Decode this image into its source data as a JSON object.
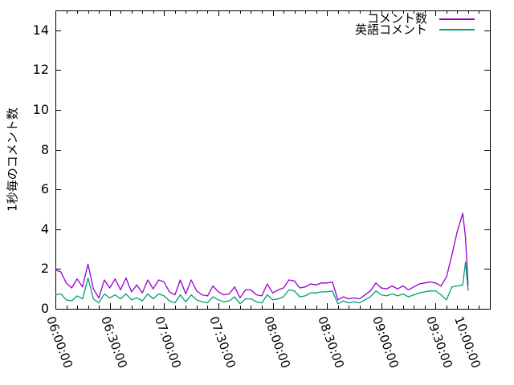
{
  "chart_data": {
    "type": "line",
    "title": "",
    "ylabel": "1秒毎のコメント数",
    "xlabel": "",
    "grid": false,
    "legend_position": "top-right-inside",
    "background_color": "#ffffff",
    "axis_color": "#000000",
    "text_color": "#000000",
    "x_axis": {
      "range_minutes": [
        0,
        240
      ],
      "tick_labels": [
        "06:00:00",
        "06:30:00",
        "07:00:00",
        "07:30:00",
        "08:00:00",
        "08:30:00",
        "09:00:00",
        "09:30:00",
        "10:00:00"
      ],
      "tick_minutes": [
        0,
        30,
        60,
        90,
        120,
        150,
        180,
        210,
        240
      ],
      "minor_tick_interval_minutes": 6
    },
    "y_axis": {
      "range": [
        0,
        15
      ],
      "tick_labels": [
        "0",
        "2",
        "4",
        "6",
        "8",
        "10",
        "12",
        "14"
      ],
      "tick_values": [
        0,
        2,
        4,
        6,
        8,
        10,
        12,
        14
      ]
    },
    "x_minutes": [
      0,
      3,
      6,
      9,
      12,
      15,
      18,
      21,
      24,
      27,
      30,
      33,
      36,
      39,
      42,
      45,
      48,
      51,
      54,
      57,
      60,
      63,
      66,
      69,
      72,
      75,
      78,
      81,
      84,
      87,
      90,
      93,
      96,
      99,
      102,
      105,
      108,
      111,
      114,
      117,
      120,
      123,
      126,
      129,
      132,
      135,
      138,
      141,
      144,
      147,
      150,
      153,
      156,
      159,
      162,
      165,
      168,
      171,
      174,
      177,
      180,
      183,
      186,
      189,
      192,
      195,
      198,
      201,
      204,
      207,
      210,
      213,
      216,
      219,
      222,
      225,
      226.5,
      228
    ],
    "series": [
      {
        "name": "コメント数",
        "color": "#9400d3",
        "values": [
          1.95,
          1.85,
          1.3,
          1.05,
          1.5,
          1.1,
          2.25,
          1.0,
          0.55,
          1.45,
          1.05,
          1.5,
          0.95,
          1.55,
          0.85,
          1.2,
          0.8,
          1.45,
          1.0,
          1.45,
          1.35,
          0.85,
          0.7,
          1.45,
          0.75,
          1.45,
          0.9,
          0.7,
          0.65,
          1.15,
          0.85,
          0.7,
          0.75,
          1.1,
          0.55,
          0.95,
          0.95,
          0.7,
          0.65,
          1.25,
          0.8,
          0.95,
          1.05,
          1.45,
          1.4,
          1.05,
          1.1,
          1.25,
          1.2,
          1.3,
          1.3,
          1.35,
          0.45,
          0.6,
          0.5,
          0.55,
          0.5,
          0.7,
          0.9,
          1.3,
          1.05,
          1.0,
          1.15,
          1.0,
          1.15,
          0.95,
          1.1,
          1.25,
          1.3,
          1.35,
          1.3,
          1.15,
          1.6,
          2.7,
          3.9,
          4.8,
          3.6,
          1.15
        ]
      },
      {
        "name": "英語コメント",
        "color": "#009e73",
        "values": [
          0.7,
          0.75,
          0.45,
          0.4,
          0.65,
          0.5,
          1.55,
          0.5,
          0.3,
          0.75,
          0.55,
          0.7,
          0.5,
          0.75,
          0.45,
          0.55,
          0.4,
          0.75,
          0.5,
          0.75,
          0.65,
          0.4,
          0.3,
          0.7,
          0.35,
          0.7,
          0.45,
          0.35,
          0.3,
          0.6,
          0.45,
          0.35,
          0.4,
          0.6,
          0.25,
          0.5,
          0.5,
          0.35,
          0.3,
          0.7,
          0.45,
          0.5,
          0.6,
          0.95,
          0.9,
          0.6,
          0.65,
          0.8,
          0.8,
          0.85,
          0.85,
          0.9,
          0.25,
          0.4,
          0.3,
          0.35,
          0.3,
          0.45,
          0.6,
          0.9,
          0.7,
          0.65,
          0.75,
          0.65,
          0.75,
          0.6,
          0.7,
          0.8,
          0.85,
          0.9,
          0.9,
          0.7,
          0.45,
          1.1,
          1.15,
          1.2,
          2.35,
          0.9
        ]
      }
    ]
  }
}
